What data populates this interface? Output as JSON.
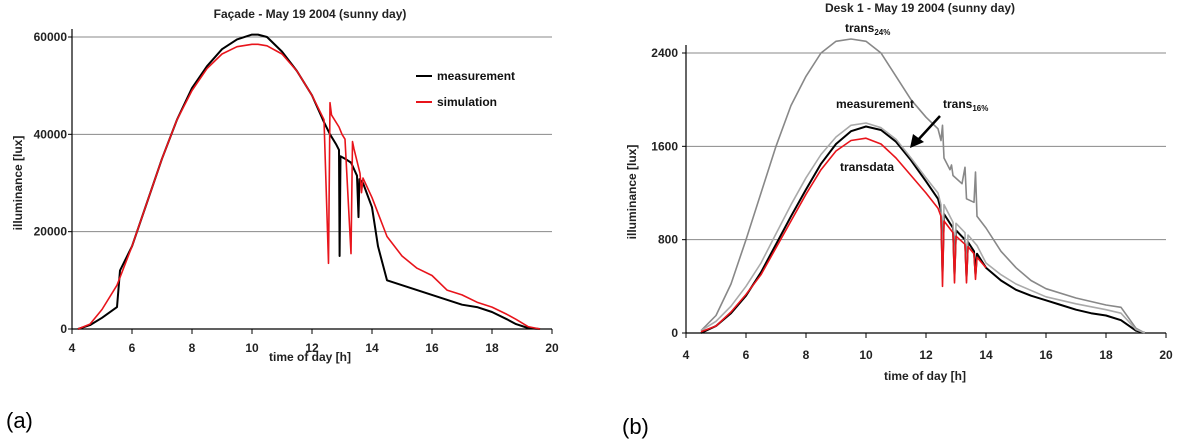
{
  "panel_labels": [
    "(a)",
    "(b)"
  ],
  "chart_data": [
    {
      "type": "line",
      "title": "Façade - May 19 2004 (sunny day)",
      "xlabel": "time of day [h]",
      "ylabel": "illuminance [lux]",
      "xlim": [
        4,
        20
      ],
      "ylim": [
        0,
        60000
      ],
      "xticks": [
        "4",
        "6",
        "8",
        "10",
        "12",
        "14",
        "16",
        "18",
        "20"
      ],
      "yticks": [
        "0",
        "20000",
        "40000",
        "60000"
      ],
      "grid": "horizontal",
      "legend": "top-right",
      "series": [
        {
          "name": "measurement",
          "color": "#000000",
          "x": [
            4.2,
            4.6,
            5.0,
            5.5,
            5.6,
            6.0,
            6.5,
            7.0,
            7.5,
            8.0,
            8.5,
            9.0,
            9.5,
            10.0,
            10.2,
            10.5,
            11.0,
            11.5,
            12.0,
            12.4,
            12.6,
            12.8,
            12.9,
            12.92,
            12.95,
            13.1,
            13.3,
            13.5,
            13.55,
            13.58,
            13.7,
            14.0,
            14.2,
            14.5,
            15.0,
            15.5,
            16.0,
            16.5,
            17.0,
            17.5,
            18.0,
            18.5,
            18.8,
            19.2,
            19.6
          ],
          "y": [
            0,
            800,
            2300,
            4500,
            12000,
            17000,
            26000,
            35000,
            43000,
            49500,
            54000,
            57500,
            59500,
            60500,
            60500,
            60000,
            57000,
            53000,
            48000,
            42500,
            40000,
            38000,
            36800,
            15000,
            35500,
            35000,
            34200,
            31500,
            23000,
            30800,
            30000,
            25000,
            17000,
            10000,
            9000,
            8000,
            7000,
            6000,
            5000,
            4500,
            3500,
            2000,
            1000,
            200,
            0
          ]
        },
        {
          "name": "simulation",
          "color": "#e8141b",
          "x": [
            4.2,
            4.6,
            5.0,
            5.5,
            6.0,
            6.5,
            7.0,
            7.5,
            8.0,
            8.5,
            9.0,
            9.5,
            10.0,
            10.2,
            10.5,
            11.0,
            11.5,
            12.0,
            12.4,
            12.55,
            12.6,
            12.65,
            12.9,
            13.0,
            13.1,
            13.3,
            13.35,
            13.4,
            13.6,
            13.65,
            13.7,
            14.0,
            14.5,
            15.0,
            15.5,
            16.0,
            16.5,
            17.0,
            17.5,
            18.0,
            18.5,
            18.8,
            19.2,
            19.6
          ],
          "y": [
            0,
            1000,
            4000,
            9000,
            17000,
            26000,
            35000,
            43000,
            49000,
            53500,
            56500,
            58000,
            58500,
            58500,
            58200,
            56500,
            53000,
            48000,
            43000,
            13500,
            46500,
            44000,
            41500,
            40000,
            39000,
            15500,
            38500,
            37000,
            32000,
            28000,
            31000,
            27000,
            19000,
            15000,
            12500,
            11000,
            8000,
            7000,
            5500,
            4500,
            3000,
            2000,
            500,
            0
          ]
        }
      ]
    },
    {
      "type": "line",
      "title": "Desk 1 - May 19 2004 (sunny day)",
      "xlabel": "time of day [h]",
      "ylabel": "illuminance [lux]",
      "xlim": [
        4,
        20
      ],
      "ylim": [
        0,
        2400
      ],
      "xticks": [
        "4",
        "6",
        "8",
        "10",
        "12",
        "14",
        "16",
        "18",
        "20"
      ],
      "yticks": [
        "0",
        "800",
        "1600",
        "2400"
      ],
      "grid": "horizontal",
      "annotations": {
        "trans24_base": "trans",
        "trans24_sub": "24%",
        "trans16_base": "trans",
        "trans16_sub": "16%",
        "measurement": "measurement",
        "transdata": "transdata"
      },
      "series": [
        {
          "name": "trans24%",
          "color": "#888888",
          "x": [
            4.5,
            5.0,
            5.5,
            6.0,
            6.5,
            7.0,
            7.5,
            8.0,
            8.5,
            9.0,
            9.5,
            10.0,
            10.5,
            11.0,
            11.5,
            12.0,
            12.4,
            12.5,
            12.55,
            12.6,
            12.8,
            12.85,
            12.9,
            13.2,
            13.3,
            13.35,
            13.6,
            13.65,
            13.7,
            14.0,
            14.5,
            15.0,
            15.5,
            16.0,
            17.0,
            18.0,
            18.5,
            19.0,
            19.3
          ],
          "y": [
            20,
            150,
            420,
            800,
            1200,
            1600,
            1950,
            2200,
            2400,
            2500,
            2520,
            2500,
            2400,
            2200,
            2000,
            1850,
            1750,
            1650,
            1780,
            1500,
            1400,
            1440,
            1350,
            1280,
            1420,
            1150,
            1120,
            1380,
            1000,
            900,
            700,
            560,
            450,
            380,
            300,
            240,
            220,
            40,
            0
          ]
        },
        {
          "name": "measurement",
          "color": "#000000",
          "x": [
            4.5,
            5.0,
            5.5,
            6.0,
            6.5,
            7.0,
            7.5,
            8.0,
            8.5,
            9.0,
            9.5,
            10.0,
            10.5,
            11.0,
            11.5,
            12.0,
            12.4,
            12.5,
            12.55,
            12.6,
            12.9,
            12.95,
            13.0,
            13.3,
            13.35,
            13.4,
            13.6,
            13.65,
            13.7,
            14.0,
            14.5,
            15.0,
            15.5,
            16.0,
            16.5,
            17.0,
            17.5,
            18.0,
            18.5,
            19.0,
            19.3
          ],
          "y": [
            0,
            60,
            170,
            320,
            520,
            760,
            1000,
            1230,
            1450,
            1620,
            1730,
            1770,
            1740,
            1640,
            1480,
            1300,
            1150,
            1050,
            520,
            1020,
            900,
            500,
            880,
            800,
            480,
            780,
            700,
            500,
            680,
            560,
            450,
            370,
            320,
            280,
            240,
            200,
            170,
            150,
            110,
            20,
            0
          ]
        },
        {
          "name": "trans16%",
          "color": "#aaaaaa",
          "x": [
            4.5,
            5.0,
            5.5,
            6.0,
            6.5,
            7.0,
            7.5,
            8.0,
            8.5,
            9.0,
            9.5,
            10.0,
            10.5,
            11.0,
            11.5,
            12.0,
            12.4,
            12.5,
            12.55,
            12.6,
            12.9,
            12.95,
            13.0,
            13.3,
            13.35,
            13.4,
            13.7,
            14.0,
            14.5,
            15.0,
            16.0,
            17.0,
            18.0,
            18.5,
            19.0,
            19.3
          ],
          "y": [
            20,
            100,
            230,
            400,
            600,
            850,
            1100,
            1330,
            1530,
            1680,
            1780,
            1800,
            1760,
            1660,
            1500,
            1330,
            1200,
            1100,
            500,
            1100,
            950,
            450,
            940,
            860,
            450,
            840,
            750,
            600,
            500,
            420,
            310,
            250,
            200,
            170,
            30,
            0
          ]
        },
        {
          "name": "transdata",
          "color": "#e8141b",
          "x": [
            4.5,
            5.0,
            5.5,
            6.0,
            6.5,
            7.0,
            7.5,
            8.0,
            8.5,
            9.0,
            9.5,
            10.0,
            10.5,
            11.0,
            11.5,
            12.0,
            12.4,
            12.5,
            12.55,
            12.6,
            12.9,
            12.95,
            13.0,
            13.3,
            13.35,
            13.4,
            13.6,
            13.65,
            13.7,
            14.0
          ],
          "y": [
            10,
            60,
            180,
            330,
            500,
            730,
            960,
            1190,
            1400,
            1560,
            1650,
            1670,
            1620,
            1500,
            1350,
            1200,
            1070,
            1000,
            400,
            960,
            860,
            430,
            830,
            760,
            430,
            740,
            680,
            460,
            650,
            560
          ]
        }
      ]
    }
  ]
}
